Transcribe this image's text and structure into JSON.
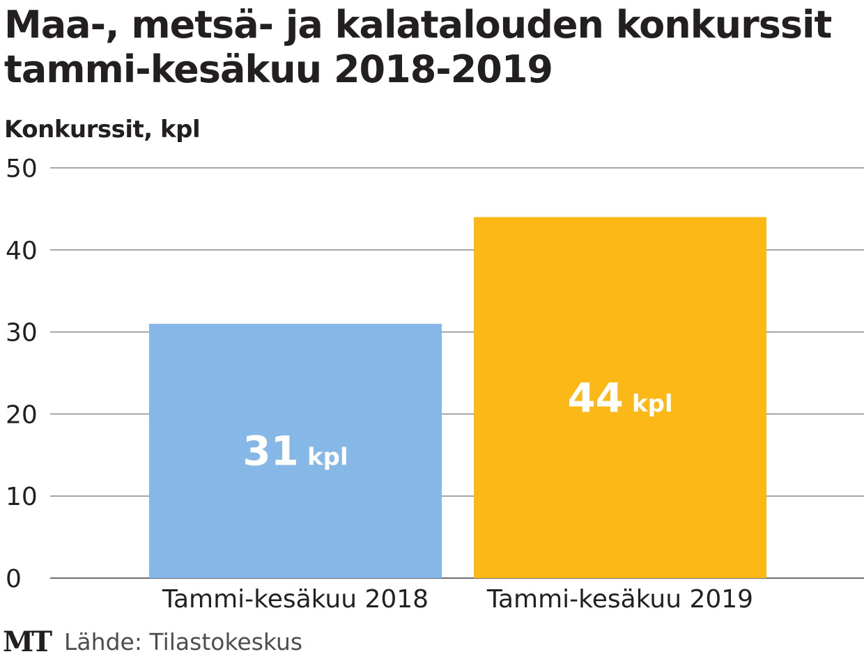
{
  "title_line1": "Maa-, metsä- ja kalatalouden konkurssit",
  "title_line2": "tammi-kesäkuu 2018-2019",
  "source": "Lähde: Tilastokeskus",
  "logo": "MT",
  "chart_data": {
    "type": "bar",
    "ylabel": "Konkurssit, kpl",
    "ylim": [
      0,
      50
    ],
    "yticks": [
      0,
      10,
      20,
      30,
      40,
      50
    ],
    "categories": [
      "Tammi-kesäkuu 2018",
      "Tammi-kesäkuu 2019"
    ],
    "values": [
      31,
      44
    ],
    "value_unit": "kpl",
    "colors": [
      "#85b8e6",
      "#fbb817"
    ],
    "grid": true
  }
}
